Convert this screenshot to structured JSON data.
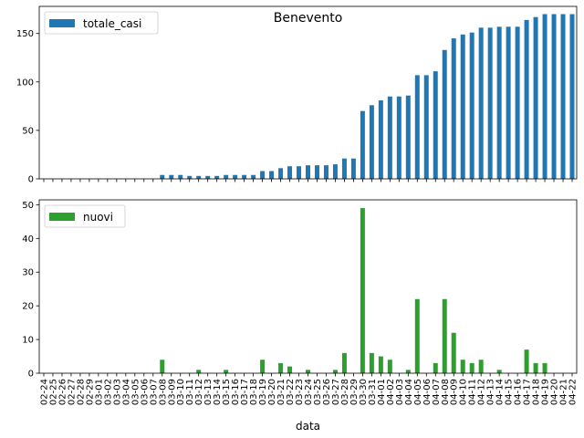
{
  "chart_data": [
    {
      "type": "bar",
      "title": "Benevento",
      "series": [
        {
          "name": "totale_casi",
          "color": "#1f77b4",
          "values": [
            0,
            0,
            0,
            0,
            0,
            0,
            0,
            0,
            0,
            0,
            0,
            0,
            0,
            4,
            4,
            4,
            3,
            3,
            3,
            3,
            4,
            4,
            4,
            4,
            8,
            8,
            11,
            13,
            13,
            14,
            14,
            14,
            15,
            21,
            21,
            70,
            76,
            81,
            85,
            85,
            86,
            107,
            107,
            111,
            133,
            145,
            149,
            151,
            156,
            156,
            157,
            157,
            157,
            164,
            167,
            170,
            170,
            170,
            170
          ]
        }
      ],
      "ylim": [
        0,
        178
      ],
      "yticks": [
        0,
        50,
        100,
        150
      ],
      "legend": "top-left"
    },
    {
      "type": "bar",
      "xlabel": "data",
      "series": [
        {
          "name": "nuovi",
          "color": "#2ca02c",
          "values": [
            0,
            0,
            0,
            0,
            0,
            0,
            0,
            0,
            0,
            0,
            0,
            0,
            0,
            4,
            0,
            0,
            0,
            1,
            0,
            0,
            1,
            0,
            0,
            0,
            4,
            0,
            3,
            2,
            0,
            1,
            0,
            0,
            1,
            6,
            0,
            49,
            6,
            5,
            4,
            0,
            1,
            22,
            0,
            3,
            22,
            12,
            4,
            3,
            4,
            0,
            1,
            0,
            0,
            7,
            3,
            3,
            0,
            0,
            0
          ]
        }
      ],
      "ylim": [
        0,
        51.45
      ],
      "yticks": [
        0,
        10,
        20,
        30,
        40,
        50
      ],
      "legend": "top-left"
    }
  ],
  "categories": [
    "02-24",
    "02-25",
    "02-26",
    "02-27",
    "02-28",
    "02-29",
    "03-01",
    "03-02",
    "03-03",
    "03-04",
    "03-05",
    "03-06",
    "03-07",
    "03-08",
    "03-09",
    "03-10",
    "03-11",
    "03-12",
    "03-13",
    "03-14",
    "03-15",
    "03-16",
    "03-17",
    "03-18",
    "03-19",
    "03-20",
    "03-21",
    "03-22",
    "03-23",
    "03-24",
    "03-25",
    "03-26",
    "03-27",
    "03-28",
    "03-29",
    "03-30",
    "03-31",
    "04-01",
    "04-02",
    "04-03",
    "04-04",
    "04-05",
    "04-06",
    "04-07",
    "04-08",
    "04-09",
    "04-10",
    "04-11",
    "04-12",
    "04-13",
    "04-14",
    "04-15",
    "04-16",
    "04-17",
    "04-18",
    "04-19",
    "04-20",
    "04-21",
    "04-22"
  ]
}
